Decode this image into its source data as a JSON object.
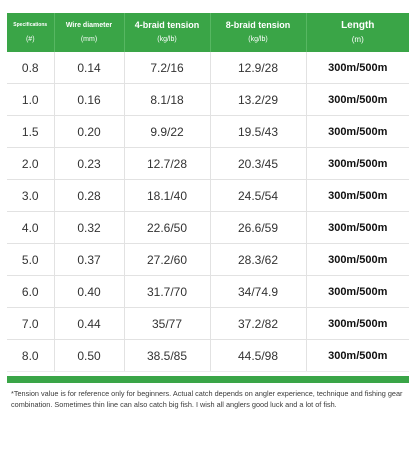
{
  "table": {
    "headers": [
      {
        "top": "Specifications",
        "sub": "(#)"
      },
      {
        "top": "Wire diameter",
        "sub": "(mm)"
      },
      {
        "top": "4-braid tension",
        "sub": "(kg/lb)"
      },
      {
        "top": "8-braid tension",
        "sub": "(kg/lb)"
      },
      {
        "top": "Length",
        "sub": "(m)"
      }
    ],
    "rows": [
      [
        "0.8",
        "0.14",
        "7.2/16",
        "12.9/28",
        "300m/500m"
      ],
      [
        "1.0",
        "0.16",
        "8.1/18",
        "13.2/29",
        "300m/500m"
      ],
      [
        "1.5",
        "0.20",
        "9.9/22",
        "19.5/43",
        "300m/500m"
      ],
      [
        "2.0",
        "0.23",
        "12.7/28",
        "20.3/45",
        "300m/500m"
      ],
      [
        "3.0",
        "0.28",
        "18.1/40",
        "24.5/54",
        "300m/500m"
      ],
      [
        "4.0",
        "0.32",
        "22.6/50",
        "26.6/59",
        "300m/500m"
      ],
      [
        "5.0",
        "0.37",
        "27.2/60",
        "28.3/62",
        "300m/500m"
      ],
      [
        "6.0",
        "0.40",
        "31.7/70",
        "34/74.9",
        "300m/500m"
      ],
      [
        "7.0",
        "0.44",
        "35/77",
        "37.2/82",
        "300m/500m"
      ],
      [
        "8.0",
        "0.50",
        "38.5/85",
        "44.5/98",
        "300m/500m"
      ]
    ]
  },
  "note": "*Tension value is for reference only for beginners. Actual catch depends on angler experience, technique and fishing gear combination. Sometimes thin line can also catch big fish. I wish all anglers good luck and a lot of fish.",
  "colors": {
    "accent": "#3aa547"
  }
}
